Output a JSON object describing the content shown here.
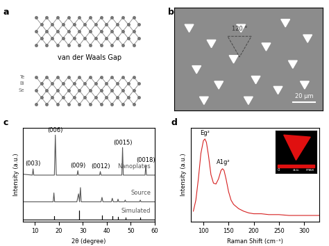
{
  "diagram": {
    "panel_label": "a",
    "gap_label": "van der Waals Gap",
    "atom_labels": [
      "Te",
      "Bi",
      "Se"
    ]
  },
  "image": {
    "panel_label": "b",
    "angle_label": "120 °",
    "scale_bar_label": "20 μm"
  },
  "chart_data": [
    {
      "type": "line",
      "panel_label": "c",
      "xlabel": "2θ (degree)",
      "ylabel": "Intensity (a.u.)",
      "xlim": [
        5,
        60
      ],
      "xticks": [
        10,
        20,
        30,
        40,
        50,
        60
      ],
      "ylim": [
        0,
        105
      ],
      "tick_labels": "x",
      "series": [
        {
          "name": "Nanoplates",
          "color": "#555555",
          "x": [
            5,
            8.9,
            9.2,
            9.5,
            18.1,
            18.5,
            18.9,
            27.6,
            27.9,
            28.2,
            37.0,
            37.3,
            37.6,
            46.3,
            46.6,
            46.9,
            56.0,
            56.3,
            56.6,
            60
          ],
          "values": [
            53,
            52,
            59,
            52,
            52,
            97,
            52,
            52,
            57,
            52,
            52,
            56,
            52,
            52,
            83,
            52,
            52,
            63,
            52,
            52
          ]
        },
        {
          "name": "Source",
          "color": "#555555",
          "x": [
            5,
            17.6,
            17.9,
            18.2,
            27.5,
            28.2,
            28.6,
            29.0,
            29.3,
            29.7,
            37.6,
            38.0,
            38.4,
            41.9,
            42.3,
            42.7,
            44.4,
            44.7,
            45.0,
            47.4,
            47.7,
            48.0,
            53.7,
            54.0,
            54.3,
            60
          ],
          "values": [
            22,
            22,
            32,
            22,
            22,
            31,
            22,
            38,
            22,
            22,
            22,
            27,
            22,
            22,
            26,
            22,
            22,
            25,
            22,
            22,
            24,
            22,
            22,
            24,
            22,
            22
          ]
        },
        {
          "name": "Simulated",
          "color": "#000000",
          "x": [
            5,
            18.1,
            18.1,
            18.1,
            28.3,
            28.3,
            28.3,
            38.1,
            38.1,
            38.1,
            42.4,
            42.4,
            42.4,
            44.8,
            44.8,
            44.8,
            47.8,
            47.8,
            47.8,
            54.0,
            54.0,
            54.0,
            60
          ],
          "values": [
            2,
            2,
            6,
            2,
            2,
            12,
            2,
            2,
            7,
            2,
            2,
            6,
            2,
            2,
            5,
            2,
            2,
            4,
            2,
            2,
            4,
            2,
            2
          ]
        }
      ],
      "annotations": [
        {
          "text": "(003)",
          "x": 9.2,
          "y": 61
        },
        {
          "text": "(006)",
          "x": 18.5,
          "y": 99
        },
        {
          "text": "(009)",
          "x": 27.9,
          "y": 59
        },
        {
          "text": "(0012)",
          "x": 37.3,
          "y": 58
        },
        {
          "text": "(0015)",
          "x": 46.6,
          "y": 85
        },
        {
          "text": "(0018)",
          "x": 56.3,
          "y": 65
        }
      ]
    },
    {
      "type": "line",
      "panel_label": "d",
      "xlabel": "Raman Shift (cm⁻¹)",
      "ylabel": "Intensity (a.u.)",
      "xlim": [
        75,
        330
      ],
      "xticks": [
        100,
        150,
        200,
        250,
        300
      ],
      "ylim": [
        0,
        1.1
      ],
      "tick_labels": "x",
      "series": [
        {
          "name": null,
          "color": "#d62020",
          "x": [
            80,
            85,
            90,
            95,
            100,
            103,
            106,
            110,
            115,
            120,
            125,
            130,
            135,
            138,
            141,
            145,
            150,
            155,
            160,
            170,
            180,
            190,
            200,
            215,
            230,
            250,
            270,
            290,
            310,
            330
          ],
          "values": [
            0.12,
            0.25,
            0.5,
            0.8,
            0.95,
            0.97,
            0.93,
            0.78,
            0.55,
            0.45,
            0.44,
            0.5,
            0.6,
            0.62,
            0.6,
            0.5,
            0.35,
            0.25,
            0.2,
            0.15,
            0.12,
            0.1,
            0.09,
            0.09,
            0.08,
            0.08,
            0.07,
            0.07,
            0.07,
            0.07
          ]
        }
      ],
      "annotations": [
        {
          "text": "Eg²",
          "x": 103,
          "y": 1.0
        },
        {
          "text": "A1g²",
          "x": 140,
          "y": 0.66
        }
      ],
      "inset_colorbar_labels": [
        "0",
        "a.u.",
        "max"
      ]
    }
  ]
}
